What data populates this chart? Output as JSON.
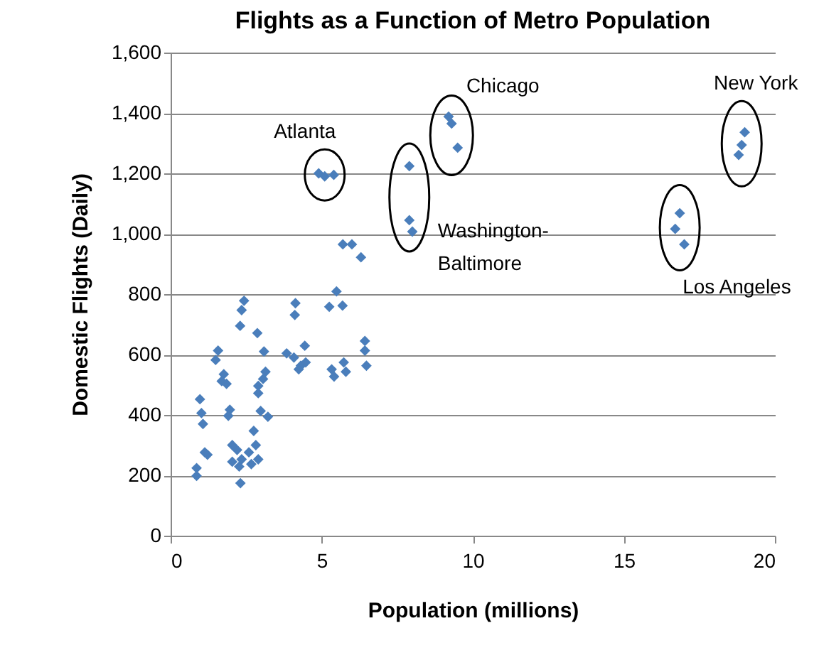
{
  "chart_data": {
    "type": "scatter",
    "title": "Flights as a Function of Metro Population",
    "xlabel": "Population (millions)",
    "ylabel": "Domestic Flights (Daily)",
    "xlim": [
      0,
      20
    ],
    "xticks": [
      0,
      5,
      10,
      15,
      20
    ],
    "ylim": [
      0,
      1600
    ],
    "yticks": [
      0,
      200,
      400,
      600,
      800,
      {
        "value": 1000,
        "label": "1,000"
      },
      {
        "value": 1200,
        "label": "1,200"
      },
      {
        "value": 1400,
        "label": "1,400"
      },
      {
        "value": 1600,
        "label": "1,600"
      }
    ],
    "grid": "y",
    "marker": "diamond",
    "legend": false,
    "series": [
      {
        "color": "#4a7ebb",
        "x": [
          4.9,
          5.1,
          5.4,
          7.9,
          7.9,
          8.0,
          9.2,
          9.3,
          9.5,
          16.85,
          16.7,
          17.0,
          19.0,
          18.9,
          18.8,
          5.7,
          6.0,
          6.3,
          2.43,
          2.35,
          2.3,
          2.87,
          3.09,
          4.13,
          4.11,
          5.49,
          5.25,
          5.69,
          3.84,
          4.08,
          4.44,
          4.31,
          4.24,
          4.47,
          1.57,
          1.49,
          1.76,
          1.69,
          1.85,
          3.14,
          3.06,
          2.9,
          2.9,
          5.33,
          5.41,
          5.73,
          5.8,
          6.43,
          6.43,
          6.48,
          0.97,
          1.02,
          1.07,
          1.96,
          1.91,
          2.98,
          3.22,
          2.75,
          1.22,
          1.13,
          0.86,
          0.86,
          2.31,
          2.04,
          2.2,
          2.35,
          2.04,
          2.59,
          2.82,
          2.9,
          2.67,
          2.27
        ],
        "values": [
          1200,
          1190,
          1195,
          1224,
          1045,
          1007,
          1388,
          1365,
          1285,
          1068,
          1016,
          965,
          1336,
          1294,
          1261,
          965,
          965,
          922,
          778,
          747,
          695,
          671,
          610,
          770,
          731,
          809,
          758,
          762,
          604,
          590,
          629,
          563,
          551,
          574,
          613,
          582,
          535,
          512,
          503,
          543,
          519,
          496,
          472,
          551,
          527,
          574,
          543,
          645,
          613,
          563,
          452,
          406,
          370,
          417,
          397,
          413,
          394,
          347,
          268,
          276,
          224,
          198,
          174,
          300,
          284,
          253,
          245,
          276,
          300,
          253,
          237,
          229
        ]
      }
    ],
    "annotations": [
      {
        "text": "Atlanta",
        "x": 5.1,
        "y": 1195
      },
      {
        "text": "Chicago",
        "x": 9.3,
        "y": 1345
      },
      {
        "text": "Washington-\nBaltimore",
        "x": 7.9,
        "y": 1045
      },
      {
        "text": "Los Angeles",
        "x": 16.85,
        "y": 1020
      },
      {
        "text": "New York",
        "x": 18.9,
        "y": 1298
      }
    ]
  }
}
